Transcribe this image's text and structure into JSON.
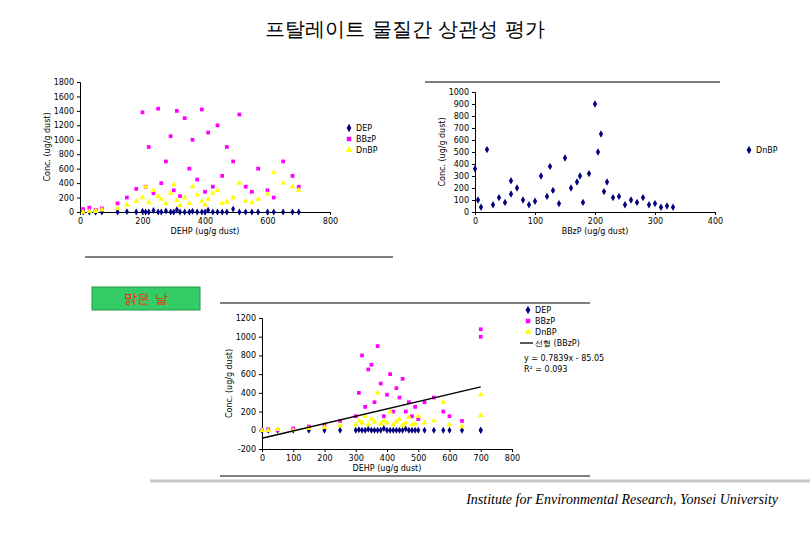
{
  "page": {
    "title": "프탈레이트 물질간 상관성 평가",
    "badge": "맑은 날",
    "footer": "Institute for Environmental Research, Yonsei University"
  },
  "chart_data": [
    {
      "type": "scatter",
      "xlabel": "DEHP (ug/g dust)",
      "ylabel": "Conc. (ug/g dust)",
      "xlim": [
        0,
        800
      ],
      "xticks": [
        0,
        200,
        400,
        600,
        800
      ],
      "ylim": [
        0,
        1800
      ],
      "yticks": [
        0,
        200,
        400,
        600,
        800,
        1000,
        1200,
        1400,
        1600,
        1800
      ],
      "legend": "right",
      "x": [
        10,
        30,
        50,
        70,
        120,
        150,
        180,
        200,
        210,
        220,
        235,
        250,
        260,
        275,
        290,
        300,
        310,
        320,
        335,
        350,
        360,
        375,
        390,
        400,
        410,
        425,
        440,
        455,
        470,
        490,
        510,
        530,
        550,
        570,
        600,
        620,
        650,
        680,
        700,
        50
      ],
      "series": [
        {
          "name": "DEP",
          "color": "#000080",
          "marker": "diamond",
          "values": [
            0,
            0,
            0,
            0,
            0,
            5,
            0,
            10,
            0,
            0,
            20,
            0,
            0,
            15,
            0,
            0,
            30,
            0,
            0,
            0,
            10,
            0,
            0,
            0,
            25,
            0,
            0,
            0,
            0,
            40,
            0,
            0,
            0,
            0,
            0,
            0,
            0,
            0,
            0,
            0
          ]
        },
        {
          "name": "BBzP",
          "color": "#ff00ff",
          "marker": "square",
          "values": [
            40,
            60,
            30,
            50,
            120,
            200,
            320,
            1380,
            350,
            900,
            260,
            1430,
            400,
            700,
            1050,
            300,
            1400,
            220,
            1300,
            600,
            1000,
            450,
            1420,
            280,
            1100,
            350,
            1200,
            500,
            900,
            700,
            1350,
            350,
            280,
            600,
            300,
            200,
            700,
            500,
            350,
            20
          ]
        },
        {
          "name": "DnBP",
          "color": "#ffff00",
          "marker": "triangle",
          "values": [
            0,
            10,
            20,
            30,
            50,
            100,
            150,
            200,
            350,
            130,
            300,
            220,
            180,
            120,
            260,
            380,
            160,
            90,
            200,
            120,
            350,
            240,
            150,
            100,
            180,
            260,
            300,
            120,
            140,
            200,
            400,
            150,
            130,
            180,
            250,
            550,
            400,
            350,
            300,
            10
          ]
        }
      ]
    },
    {
      "type": "scatter",
      "xlabel": "BBzP (ug/g dust)",
      "ylabel": "Conc. (ug/g dust)",
      "xlim": [
        0,
        400
      ],
      "xticks": [
        0,
        100,
        200,
        300,
        400
      ],
      "ylim": [
        0,
        1000
      ],
      "yticks": [
        0,
        100,
        200,
        300,
        400,
        500,
        600,
        700,
        800,
        900,
        1000
      ],
      "legend": "right",
      "x": [
        0,
        5,
        10,
        20,
        30,
        40,
        50,
        60,
        70,
        80,
        90,
        100,
        110,
        120,
        130,
        140,
        150,
        160,
        170,
        180,
        190,
        200,
        205,
        210,
        220,
        230,
        240,
        250,
        260,
        270,
        280,
        290,
        300,
        310,
        320,
        330,
        125,
        175,
        215,
        60
      ],
      "series": [
        {
          "name": "DnBP",
          "color": "#000080",
          "marker": "diamond",
          "values": [
            360,
            100,
            40,
            520,
            60,
            120,
            80,
            150,
            200,
            100,
            60,
            90,
            300,
            130,
            180,
            70,
            450,
            200,
            250,
            80,
            320,
            900,
            500,
            650,
            250,
            120,
            130,
            60,
            100,
            80,
            120,
            60,
            70,
            40,
            50,
            40,
            380,
            300,
            170,
            260
          ]
        }
      ]
    },
    {
      "type": "scatter",
      "xlabel": "DEHP (ug/g dust)",
      "ylabel": "Conc. (ug/g dust)",
      "xlim": [
        0,
        800
      ],
      "xticks": [
        0,
        100,
        200,
        300,
        400,
        500,
        600,
        700,
        800
      ],
      "ylim": [
        -200,
        1200
      ],
      "yticks": [
        -200,
        0,
        200,
        400,
        600,
        800,
        1000,
        1200
      ],
      "legend": "right",
      "x": [
        0,
        20,
        50,
        100,
        150,
        200,
        250,
        300,
        310,
        320,
        330,
        340,
        350,
        360,
        370,
        380,
        390,
        400,
        410,
        420,
        430,
        440,
        450,
        460,
        470,
        480,
        490,
        500,
        520,
        550,
        580,
        600,
        640,
        700,
        700
      ],
      "series": [
        {
          "name": "DEP",
          "color": "#000080",
          "marker": "diamond",
          "values": [
            0,
            0,
            0,
            0,
            0,
            0,
            0,
            0,
            5,
            0,
            0,
            10,
            0,
            0,
            0,
            0,
            20,
            0,
            0,
            0,
            0,
            0,
            0,
            15,
            0,
            0,
            0,
            0,
            0,
            0,
            0,
            0,
            0,
            0,
            0
          ]
        },
        {
          "name": "BBzP",
          "color": "#ff00ff",
          "marker": "square",
          "values": [
            0,
            10,
            0,
            20,
            40,
            60,
            100,
            150,
            400,
            800,
            250,
            650,
            700,
            300,
            900,
            500,
            150,
            380,
            600,
            200,
            450,
            350,
            550,
            200,
            300,
            150,
            250,
            120,
            300,
            350,
            200,
            150,
            100,
            1080,
            1000
          ]
        },
        {
          "name": "DnBP",
          "color": "#ffff00",
          "marker": "triangle",
          "values": [
            0,
            0,
            10,
            0,
            20,
            30,
            50,
            60,
            100,
            80,
            150,
            60,
            120,
            90,
            400,
            70,
            100,
            80,
            200,
            60,
            90,
            120,
            50,
            80,
            140,
            60,
            70,
            150,
            80,
            100,
            300,
            60,
            40,
            380,
            160
          ]
        }
      ],
      "trendline": {
        "name": "선형 (BBzP)",
        "color": "#000000",
        "line_style": "solid",
        "slope": 0.7839,
        "intercept": -85.05,
        "xrange": [
          0,
          700
        ]
      },
      "annotations": [
        "y = 0.7839x - 85.05",
        "R² = 0.093"
      ]
    }
  ]
}
